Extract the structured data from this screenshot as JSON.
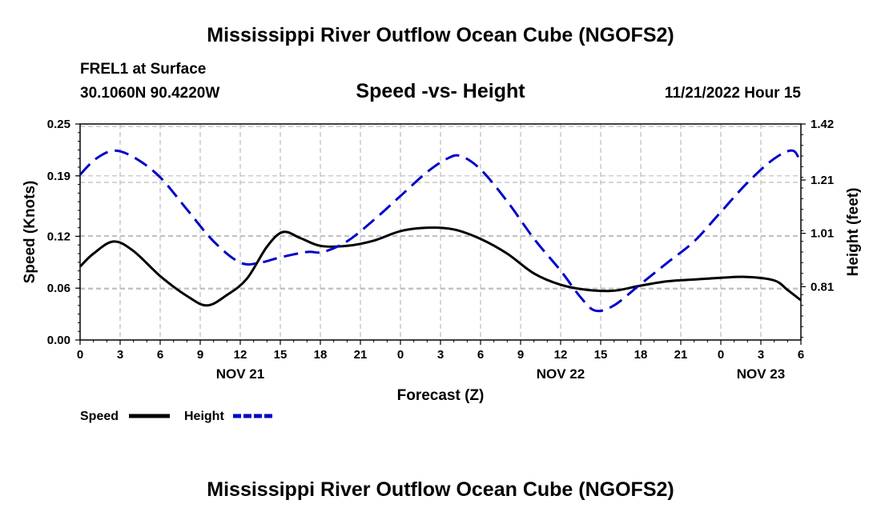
{
  "page": {
    "title": "Mississippi River Outflow Ocean Cube (NGOFS2)",
    "title_bottom": "Mississippi River Outflow Ocean Cube (NGOFS2)",
    "station": "FREL1 at Surface",
    "coords": "30.1060N  90.4220W",
    "datetime": "11/21/2022 Hour 15"
  },
  "chart_data": {
    "type": "line",
    "title": "Speed -vs- Height",
    "xlabel": "Forecast (Z)",
    "ylabel": "Speed (Knots)",
    "ylabel_right": "Height (feet)",
    "x_range": [
      0,
      54
    ],
    "x_ticks": [
      0,
      3,
      6,
      9,
      12,
      15,
      18,
      21,
      24,
      27,
      30,
      33,
      36,
      39,
      42,
      45,
      48,
      51,
      54
    ],
    "x_tick_labels": [
      "0",
      "3",
      "6",
      "9",
      "12",
      "15",
      "18",
      "21",
      "0",
      "3",
      "6",
      "9",
      "12",
      "15",
      "18",
      "21",
      "0",
      "3",
      "6"
    ],
    "day_labels": [
      {
        "at": 12,
        "label": "NOV 21"
      },
      {
        "at": 36,
        "label": "NOV 22"
      },
      {
        "at": 51,
        "label": "NOV 23"
      }
    ],
    "ylim": [
      0,
      0.25
    ],
    "y_ticks": [
      0,
      0.06,
      0.12,
      0.19,
      0.25
    ],
    "y_tick_labels": [
      "0.00",
      "0.06",
      "0.12",
      "0.19",
      "0.25"
    ],
    "y2lim": [
      0.61,
      1.42
    ],
    "y2_ticks": [
      0.81,
      1.01,
      1.21,
      1.42
    ],
    "y2_tick_labels": [
      "0.81",
      "1.01",
      "1.21",
      "1.42"
    ],
    "grid": true,
    "legend_position": "bottom-left",
    "colors": {
      "speed": "#000000",
      "height": "#0000cc",
      "grid": "#bbbbbb"
    },
    "series": [
      {
        "name": "Speed",
        "axis": "left",
        "x": [
          0,
          1,
          2.5,
          4,
          6,
          8,
          9.5,
          11,
          12.5,
          14,
          15.2,
          16.5,
          18,
          20,
          22,
          24,
          26,
          28,
          30,
          32,
          34,
          36,
          38,
          40,
          42,
          44,
          46,
          48,
          50,
          52,
          53,
          54
        ],
        "values": [
          0.085,
          0.1,
          0.114,
          0.103,
          0.074,
          0.051,
          0.04,
          0.052,
          0.071,
          0.108,
          0.125,
          0.118,
          0.109,
          0.109,
          0.115,
          0.126,
          0.13,
          0.128,
          0.117,
          0.1,
          0.077,
          0.064,
          0.058,
          0.057,
          0.063,
          0.068,
          0.07,
          0.072,
          0.073,
          0.069,
          0.058,
          0.046
        ]
      },
      {
        "name": "Height",
        "axis": "right",
        "x": [
          0,
          1.2,
          2.6,
          4.2,
          6,
          8,
          10,
          12,
          13.5,
          15,
          17,
          18.2,
          20,
          22,
          24,
          26,
          27.5,
          28.5,
          30,
          32,
          34,
          36,
          37.5,
          38.6,
          40,
          42,
          44,
          46,
          48,
          50,
          52,
          53.4,
          54
        ],
        "values": [
          1.23,
          1.29,
          1.32,
          1.29,
          1.22,
          1.1,
          0.98,
          0.9,
          0.9,
          0.92,
          0.94,
          0.94,
          0.98,
          1.06,
          1.15,
          1.24,
          1.29,
          1.3,
          1.25,
          1.13,
          0.99,
          0.87,
          0.77,
          0.72,
          0.74,
          0.82,
          0.9,
          0.98,
          1.09,
          1.2,
          1.29,
          1.32,
          1.27
        ]
      }
    ]
  }
}
